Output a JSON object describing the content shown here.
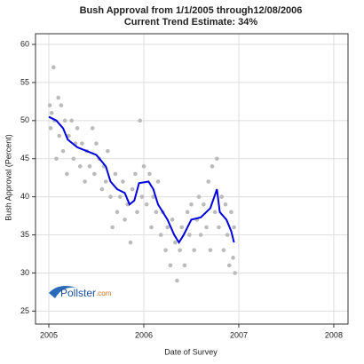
{
  "chart_data": {
    "type": "scatter",
    "title": [
      "Bush Approval from 1/1/2005 through12/08/2006",
      "Current Trend Estimate: 34%"
    ],
    "x_label": "Date of Survey",
    "y_label": "Bush Approval (Percent)",
    "logo": [
      "Pollster",
      ".com"
    ],
    "xlim": [
      2004.86,
      2008.15
    ],
    "xticks": [
      2005,
      2006,
      2007,
      2008
    ],
    "ylim": [
      23.3,
      61.4
    ],
    "yticks": [
      25,
      30,
      35,
      40,
      45,
      50,
      55,
      60
    ],
    "grid": true,
    "points": {
      "color": "#bbbbbb",
      "x": [
        2005.01,
        2005.02,
        2005.03,
        2005.05,
        2005.06,
        2005.08,
        2005.1,
        2005.11,
        2005.13,
        2005.15,
        2005.17,
        2005.19,
        2005.21,
        2005.24,
        2005.26,
        2005.28,
        2005.3,
        2005.33,
        2005.35,
        2005.38,
        2005.4,
        2005.43,
        2005.46,
        2005.48,
        2005.5,
        2005.53,
        2005.56,
        2005.58,
        2005.6,
        2005.62,
        2005.65,
        2005.67,
        2005.7,
        2005.72,
        2005.75,
        2005.78,
        2005.8,
        2005.83,
        2005.86,
        2005.88,
        2005.91,
        2005.93,
        2005.96,
        2005.98,
        2006.0,
        2006.03,
        2006.06,
        2006.08,
        2006.1,
        2006.13,
        2006.15,
        2006.18,
        2006.2,
        2006.23,
        2006.25,
        2006.28,
        2006.3,
        2006.33,
        2006.35,
        2006.38,
        2006.4,
        2006.43,
        2006.46,
        2006.48,
        2006.5,
        2006.53,
        2006.56,
        2006.58,
        2006.6,
        2006.63,
        2006.66,
        2006.68,
        2006.7,
        2006.72,
        2006.75,
        2006.77,
        2006.79,
        2006.82,
        2006.84,
        2006.86,
        2006.88,
        2006.9,
        2006.92,
        2006.94,
        2006.96,
        2006.95
      ],
      "values": [
        52,
        49,
        51,
        57,
        50,
        45,
        53,
        48,
        52,
        46,
        50,
        43,
        48,
        50,
        45,
        47,
        49,
        44,
        47,
        42,
        46,
        44,
        49,
        43,
        47,
        45,
        41,
        44,
        42,
        46,
        40,
        36,
        43,
        38,
        40,
        42,
        37,
        39,
        34,
        41,
        43,
        38,
        50,
        40,
        44,
        39,
        43,
        36,
        40,
        38,
        42,
        35,
        38,
        33,
        36,
        31,
        37,
        34,
        29,
        33,
        36,
        31,
        38,
        35,
        39,
        33,
        37,
        40,
        35,
        39,
        36,
        42,
        33,
        44,
        38,
        45,
        36,
        40,
        33,
        39,
        35,
        31,
        38,
        32,
        30,
        36
      ]
    },
    "trend": {
      "color": "#0000dd",
      "x": [
        2005.0,
        2005.08,
        2005.15,
        2005.2,
        2005.3,
        2005.4,
        2005.5,
        2005.6,
        2005.65,
        2005.72,
        2005.8,
        2005.85,
        2005.9,
        2005.95,
        2006.05,
        2006.1,
        2006.15,
        2006.25,
        2006.32,
        2006.37,
        2006.42,
        2006.5,
        2006.6,
        2006.7,
        2006.77,
        2006.8,
        2006.87,
        2006.92,
        2006.95
      ],
      "values": [
        50.5,
        50,
        49,
        47.5,
        46.5,
        46,
        45.5,
        44,
        42,
        41,
        40.5,
        39,
        39.5,
        41.8,
        42,
        41,
        39,
        37,
        35,
        34,
        35,
        37,
        37.3,
        38.5,
        41,
        38,
        37,
        35.5,
        34
      ]
    }
  }
}
